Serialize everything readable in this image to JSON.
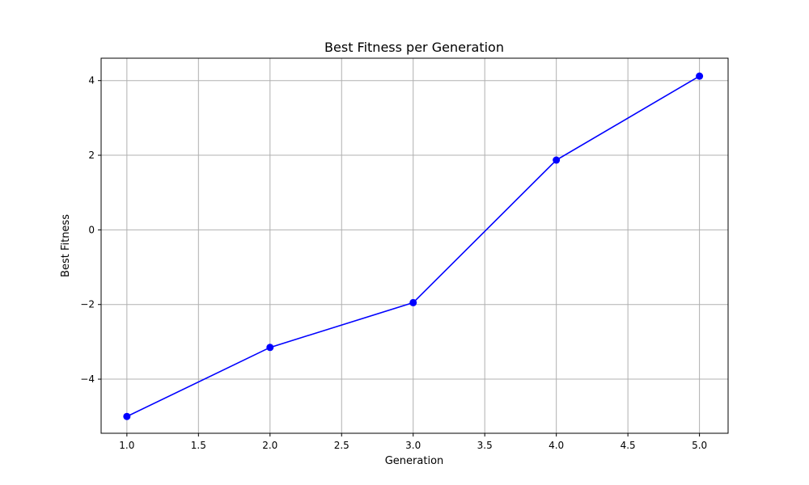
{
  "chart_data": {
    "type": "line",
    "title": "Best Fitness per Generation",
    "xlabel": "Generation",
    "ylabel": "Best Fitness",
    "x": [
      1,
      2,
      3,
      4,
      5
    ],
    "series": [
      {
        "values": [
          -5.0,
          -3.15,
          -1.95,
          1.87,
          4.12
        ]
      }
    ],
    "xlim": [
      0.82,
      5.2
    ],
    "ylim": [
      -5.45,
      4.6
    ],
    "xticks": [
      1.0,
      1.5,
      2.0,
      2.5,
      3.0,
      3.5,
      4.0,
      4.5,
      5.0
    ],
    "xtick_labels": [
      "1.0",
      "1.5",
      "2.0",
      "2.5",
      "3.0",
      "3.5",
      "4.0",
      "4.5",
      "5.0"
    ],
    "yticks": [
      -4,
      -2,
      0,
      2,
      4
    ],
    "ytick_labels": [
      "−4",
      "−2",
      "0",
      "2",
      "4"
    ],
    "grid": true,
    "colors": {
      "line": "#0000ff",
      "marker": "#0000ff"
    },
    "marker": "circle"
  }
}
